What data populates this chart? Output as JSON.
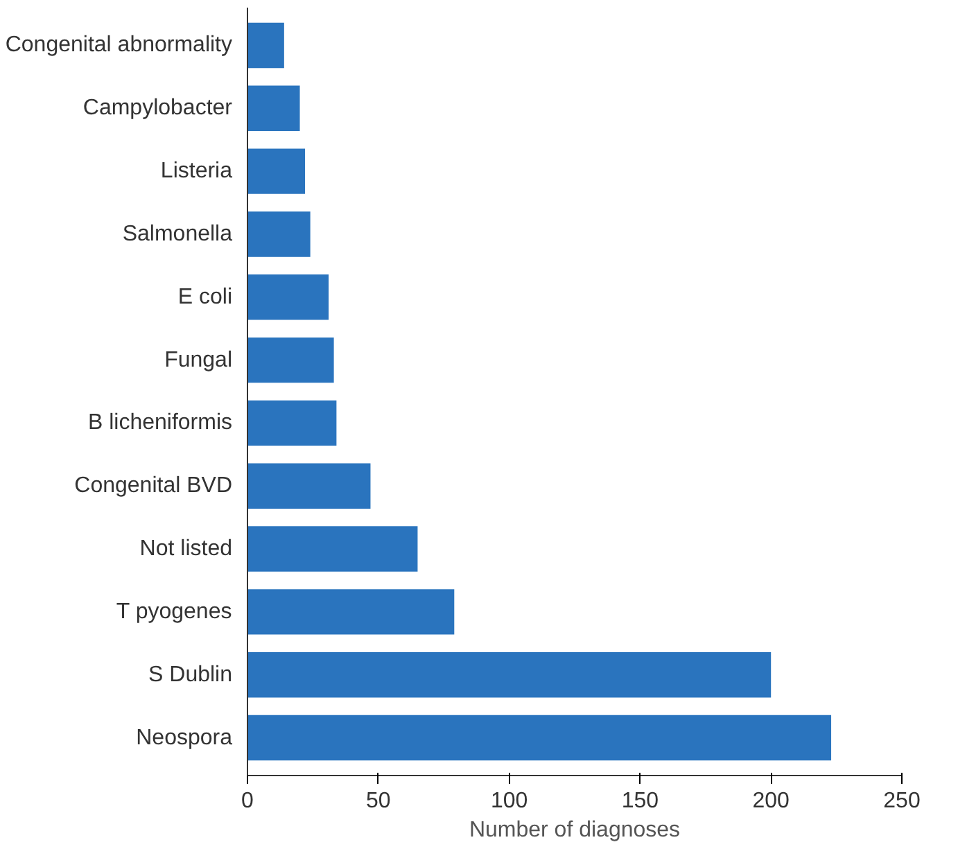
{
  "chart_data": {
    "type": "bar",
    "orientation": "horizontal",
    "xlabel": "Number of diagnoses",
    "categories": [
      "Congenital abnormality",
      "Campylobacter",
      "Listeria",
      "Salmonella",
      "E coli",
      "Fungal",
      "B licheniformis",
      "Congenital BVD",
      "Not listed",
      "T pyogenes",
      "S Dublin",
      "Neospora"
    ],
    "values": [
      14,
      20,
      22,
      24,
      31,
      33,
      34,
      47,
      65,
      79,
      200,
      223
    ],
    "color": "#2a74be",
    "xlim": [
      0,
      250
    ],
    "xticks": [
      0,
      50,
      100,
      150,
      200,
      250
    ],
    "grid": false
  }
}
